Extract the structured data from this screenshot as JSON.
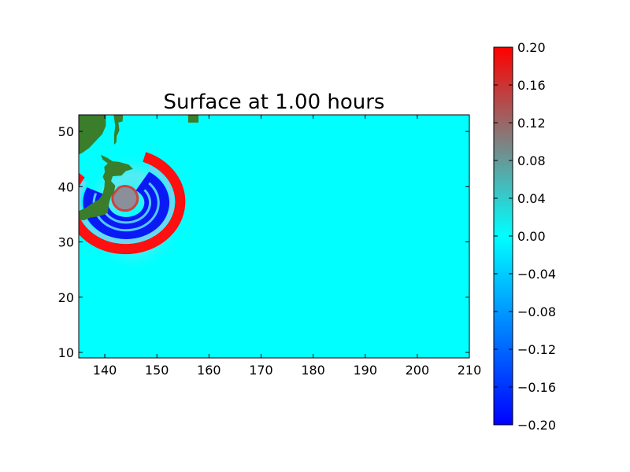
{
  "chart_data": {
    "type": "heatmap",
    "title": "Surface at 1.00 hours",
    "xlabel": "",
    "ylabel": "",
    "xlim": [
      135,
      210
    ],
    "ylim": [
      9,
      53
    ],
    "xticks": [
      140,
      150,
      160,
      170,
      180,
      190,
      200,
      210
    ],
    "yticks": [
      10,
      20,
      30,
      40,
      50
    ],
    "grid": false,
    "field": {
      "variable": "surface",
      "background_value": 0.0,
      "wave_source_center": [
        143.5,
        38.5
      ],
      "wave_front_value": 0.2,
      "inner_trough_value": -0.2
    },
    "colorbar": {
      "vmin": -0.2,
      "vmax": 0.2,
      "ticks": [
        "0.20",
        "0.16",
        "0.12",
        "0.08",
        "0.04",
        "0.00",
        "−0.04",
        "−0.08",
        "−0.12",
        "−0.16",
        "−0.20"
      ],
      "tick_values": [
        0.2,
        0.16,
        0.12,
        0.08,
        0.04,
        0.0,
        -0.04,
        -0.08,
        -0.12,
        -0.16,
        -0.2
      ],
      "colors": {
        "min": "#0000ff",
        "mid": "#00ffff",
        "upper_mid": "#808080",
        "max": "#ff0000"
      }
    },
    "land_color": "#3a7d2a"
  }
}
